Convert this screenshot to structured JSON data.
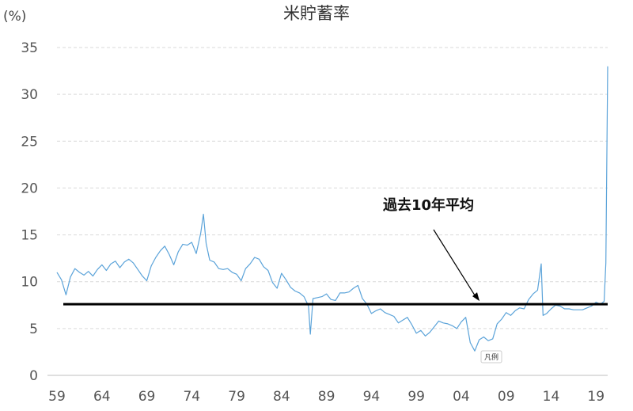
{
  "chart_data": {
    "type": "line",
    "title": "米貯蓄率",
    "ylabel": "(%)",
    "xlabel": "",
    "ylim": [
      0,
      35
    ],
    "yticks": [
      0,
      5,
      10,
      15,
      20,
      25,
      30,
      35
    ],
    "xlim": [
      1959,
      2020.3
    ],
    "xticks": [
      {
        "value": 1959,
        "label": "59"
      },
      {
        "value": 1964,
        "label": "64"
      },
      {
        "value": 1969,
        "label": "69"
      },
      {
        "value": 1974,
        "label": "74"
      },
      {
        "value": 1979,
        "label": "79"
      },
      {
        "value": 1984,
        "label": "84"
      },
      {
        "value": 1989,
        "label": "89"
      },
      {
        "value": 1994,
        "label": "94"
      },
      {
        "value": 1999,
        "label": "99"
      },
      {
        "value": 2004,
        "label": "04"
      },
      {
        "value": 2009,
        "label": "09"
      },
      {
        "value": 2014,
        "label": "14"
      },
      {
        "value": 2019,
        "label": "19"
      }
    ],
    "grid": true,
    "series": [
      {
        "color": "#5ba3d9",
        "x": [
          1959.0,
          1959.5,
          1960.0,
          1960.5,
          1961.0,
          1961.5,
          1962.0,
          1962.5,
          1963.0,
          1963.5,
          1964.0,
          1964.5,
          1965.0,
          1965.5,
          1966.0,
          1966.5,
          1967.0,
          1967.5,
          1968.0,
          1968.5,
          1969.0,
          1969.5,
          1970.0,
          1970.5,
          1971.0,
          1971.5,
          1972.0,
          1972.5,
          1973.0,
          1973.5,
          1974.0,
          1974.5,
          1975.0,
          1975.3,
          1975.6,
          1976.0,
          1976.5,
          1977.0,
          1977.5,
          1978.0,
          1978.5,
          1979.0,
          1979.5,
          1980.0,
          1980.5,
          1981.0,
          1981.5,
          1982.0,
          1982.5,
          1983.0,
          1983.5,
          1984.0,
          1984.5,
          1985.0,
          1985.5,
          1986.0,
          1986.5,
          1987.0,
          1987.2,
          1987.5,
          1988.0,
          1988.5,
          1989.0,
          1989.5,
          1990.0,
          1990.5,
          1991.0,
          1991.5,
          1992.0,
          1992.5,
          1993.0,
          1993.5,
          1994.0,
          1994.5,
          1995.0,
          1995.5,
          1996.0,
          1996.5,
          1997.0,
          1997.5,
          1998.0,
          1998.5,
          1999.0,
          1999.5,
          2000.0,
          2000.5,
          2001.0,
          2001.5,
          2002.0,
          2002.5,
          2003.0,
          2003.5,
          2004.0,
          2004.5,
          2005.0,
          2005.5,
          2006.0,
          2006.5,
          2007.0,
          2007.5,
          2008.0,
          2008.5,
          2009.0,
          2009.5,
          2010.0,
          2010.5,
          2011.0,
          2011.5,
          2012.0,
          2012.5,
          2012.9,
          2013.1,
          2013.5,
          2014.0,
          2014.5,
          2015.0,
          2015.5,
          2016.0,
          2016.5,
          2017.0,
          2017.5,
          2018.0,
          2018.5,
          2019.0,
          2019.5,
          2019.9,
          2020.1,
          2020.3
        ],
        "y": [
          11.0,
          10.2,
          8.6,
          10.5,
          11.4,
          11.0,
          10.7,
          11.1,
          10.6,
          11.3,
          11.8,
          11.2,
          11.9,
          12.2,
          11.5,
          12.1,
          12.4,
          12.0,
          11.3,
          10.6,
          10.1,
          11.7,
          12.6,
          13.3,
          13.8,
          12.9,
          11.8,
          13.2,
          14.0,
          13.9,
          14.2,
          13.0,
          15.2,
          17.2,
          14.1,
          12.3,
          12.1,
          11.4,
          11.3,
          11.4,
          11.0,
          10.8,
          10.1,
          11.4,
          11.9,
          12.6,
          12.4,
          11.6,
          11.2,
          9.9,
          9.3,
          10.9,
          10.2,
          9.4,
          9.0,
          8.8,
          8.4,
          7.4,
          4.4,
          8.2,
          8.3,
          8.4,
          8.7,
          8.1,
          8.0,
          8.8,
          8.8,
          8.9,
          9.3,
          9.6,
          8.2,
          7.6,
          6.6,
          6.9,
          7.1,
          6.7,
          6.5,
          6.3,
          5.6,
          5.9,
          6.2,
          5.4,
          4.5,
          4.8,
          4.2,
          4.6,
          5.2,
          5.8,
          5.6,
          5.5,
          5.3,
          5.0,
          5.7,
          6.2,
          3.5,
          2.6,
          3.8,
          4.1,
          3.7,
          3.9,
          5.5,
          6.0,
          6.7,
          6.4,
          6.9,
          7.2,
          7.1,
          8.1,
          8.7,
          9.1,
          11.9,
          6.4,
          6.6,
          7.1,
          7.5,
          7.4,
          7.1,
          7.1,
          7.0,
          7.0,
          7.0,
          7.2,
          7.4,
          7.8,
          7.6,
          7.9,
          12.0,
          33.0
        ]
      }
    ],
    "reference_lines": [
      {
        "label": "過去10年平均",
        "y": 7.6,
        "color": "#000000"
      }
    ],
    "annotations": [
      {
        "text": "凡例"
      }
    ]
  }
}
